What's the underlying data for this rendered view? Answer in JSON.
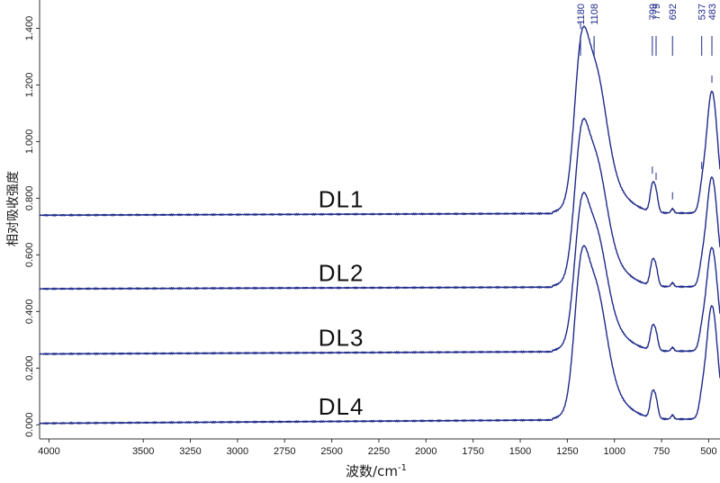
{
  "chart_data": {
    "type": "line",
    "xlabel": "波数/cm",
    "xlabel_sup": "-1",
    "ylabel": "相对吸收强度",
    "xlim": [
      4050,
      440
    ],
    "ylim": [
      -0.05,
      1.5
    ],
    "x_ticks": [
      4000,
      3500,
      3250,
      3000,
      2750,
      2500,
      2250,
      2000,
      1750,
      1500,
      1250,
      1000,
      750,
      500
    ],
    "y_ticks": [
      0.0,
      0.2,
      0.4,
      0.6,
      0.8,
      1.0,
      1.2,
      1.4
    ],
    "y_tick_labels": [
      "0.000",
      "0.200",
      "0.400",
      "0.600",
      "0.800",
      "1.000",
      "1.200",
      "1.400"
    ],
    "line_color": "#1f2a8a",
    "peak_labels": [
      {
        "label": "1180",
        "x": 1180
      },
      {
        "label": "1108",
        "x": 1108
      },
      {
        "label": "799",
        "x": 799
      },
      {
        "label": "779",
        "x": 779
      },
      {
        "label": "692",
        "x": 692
      },
      {
        "label": "537",
        "x": 537
      },
      {
        "label": "483",
        "x": 483
      }
    ],
    "series": [
      {
        "name": "DL1",
        "baseline": 0.74,
        "drift": 0.006,
        "peak_scale": 1.0,
        "label_x": 2450
      },
      {
        "name": "DL2",
        "baseline": 0.48,
        "drift": 0.006,
        "peak_scale": 0.9,
        "label_x": 2450
      },
      {
        "name": "DL3",
        "baseline": 0.25,
        "drift": 0.008,
        "peak_scale": 0.85,
        "label_x": 2450
      },
      {
        "name": "DL4",
        "baseline": 0.005,
        "drift": 0.012,
        "peak_scale": 0.93,
        "label_x": 2450
      }
    ],
    "bands": [
      {
        "center": 1180,
        "height": 0.36,
        "width": 35
      },
      {
        "center": 1108,
        "height": 0.42,
        "width": 60
      },
      {
        "center": 1060,
        "height": 0.1,
        "width": 110
      },
      {
        "center": 799,
        "height": 0.09,
        "width": 12
      },
      {
        "center": 779,
        "height": 0.06,
        "width": 11
      },
      {
        "center": 692,
        "height": 0.015,
        "width": 8
      },
      {
        "center": 537,
        "height": 0.04,
        "width": 14
      },
      {
        "center": 483,
        "height": 0.43,
        "width": 30
      }
    ]
  }
}
